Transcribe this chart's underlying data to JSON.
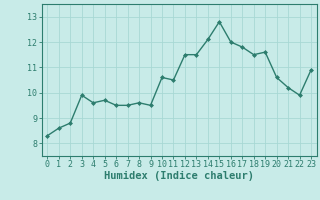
{
  "x": [
    0,
    1,
    2,
    3,
    4,
    5,
    6,
    7,
    8,
    9,
    10,
    11,
    12,
    13,
    14,
    15,
    16,
    17,
    18,
    19,
    20,
    21,
    22,
    23
  ],
  "y": [
    8.3,
    8.6,
    8.8,
    9.9,
    9.6,
    9.7,
    9.5,
    9.5,
    9.6,
    9.5,
    10.6,
    10.5,
    11.5,
    11.5,
    12.1,
    12.8,
    12.0,
    11.8,
    11.5,
    11.6,
    10.6,
    10.2,
    9.9,
    10.9
  ],
  "line_color": "#2d7d6e",
  "marker": "D",
  "marker_size": 2,
  "bg_color": "#c8ebe8",
  "grid_color": "#a8d8d4",
  "xlabel": "Humidex (Indice chaleur)",
  "ylabel": "",
  "ylim": [
    7.5,
    13.5
  ],
  "xlim": [
    -0.5,
    23.5
  ],
  "yticks": [
    8,
    9,
    10,
    11,
    12,
    13
  ],
  "xticks": [
    0,
    1,
    2,
    3,
    4,
    5,
    6,
    7,
    8,
    9,
    10,
    11,
    12,
    13,
    14,
    15,
    16,
    17,
    18,
    19,
    20,
    21,
    22,
    23
  ],
  "tick_label_fontsize": 6,
  "xlabel_fontsize": 7.5,
  "line_width": 1.0,
  "axis_color": "#2d7d6e"
}
